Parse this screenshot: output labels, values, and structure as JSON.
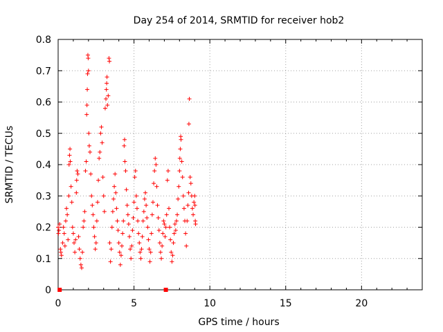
{
  "chart_data": {
    "type": "scatter",
    "title": "Day 254 of 2014, SRMTID for receiver hob2",
    "xlabel": "GPS time / hours",
    "ylabel": "SRMTID / TECUs",
    "xlim": [
      0,
      24
    ],
    "ylim": [
      0,
      0.8
    ],
    "xticks": [
      "0",
      "5",
      "10",
      "15",
      "20"
    ],
    "yticks": [
      "0",
      "0.1",
      "0.2",
      "0.3",
      "0.4",
      "0.5",
      "0.6",
      "0.7",
      "0.8"
    ],
    "grid": true,
    "marker": "+",
    "color": "#ff0000",
    "series": [
      {
        "name": "",
        "points": [
          [
            0.0,
            0.2
          ],
          [
            0.02,
            0.18
          ],
          [
            0.05,
            0.19
          ],
          [
            0.1,
            0.21
          ],
          [
            0.15,
            0.13
          ],
          [
            0.18,
            0.12
          ],
          [
            0.22,
            0.11
          ],
          [
            0.3,
            0.15
          ],
          [
            0.35,
            0.2
          ],
          [
            0.4,
            0.18
          ],
          [
            0.45,
            0.14
          ],
          [
            0.5,
            0.22
          ],
          [
            0.55,
            0.26
          ],
          [
            0.6,
            0.24
          ],
          [
            0.65,
            0.16
          ],
          [
            0.7,
            0.3
          ],
          [
            0.72,
            0.4
          ],
          [
            0.75,
            0.43
          ],
          [
            0.78,
            0.45
          ],
          [
            0.8,
            0.41
          ],
          [
            0.85,
            0.33
          ],
          [
            0.9,
            0.28
          ],
          [
            0.95,
            0.2
          ],
          [
            1.0,
            0.18
          ],
          [
            1.05,
            0.15
          ],
          [
            1.1,
            0.12
          ],
          [
            1.15,
            0.16
          ],
          [
            1.2,
            0.31
          ],
          [
            1.22,
            0.35
          ],
          [
            1.25,
            0.38
          ],
          [
            1.3,
            0.37
          ],
          [
            1.35,
            0.17
          ],
          [
            1.4,
            0.13
          ],
          [
            1.45,
            0.1
          ],
          [
            1.5,
            0.08
          ],
          [
            1.55,
            0.07
          ],
          [
            1.6,
            0.12
          ],
          [
            1.65,
            0.2
          ],
          [
            1.7,
            0.22
          ],
          [
            1.75,
            0.25
          ],
          [
            1.8,
            0.38
          ],
          [
            1.85,
            0.41
          ],
          [
            1.88,
            0.56
          ],
          [
            1.9,
            0.59
          ],
          [
            1.92,
            0.64
          ],
          [
            1.94,
            0.69
          ],
          [
            1.96,
            0.75
          ],
          [
            1.98,
            0.74
          ],
          [
            2.0,
            0.7
          ],
          [
            2.02,
            0.5
          ],
          [
            2.05,
            0.46
          ],
          [
            2.1,
            0.44
          ],
          [
            2.15,
            0.37
          ],
          [
            2.2,
            0.3
          ],
          [
            2.25,
            0.27
          ],
          [
            2.3,
            0.24
          ],
          [
            2.35,
            0.2
          ],
          [
            2.4,
            0.17
          ],
          [
            2.45,
            0.13
          ],
          [
            2.5,
            0.15
          ],
          [
            2.55,
            0.22
          ],
          [
            2.6,
            0.28
          ],
          [
            2.65,
            0.35
          ],
          [
            2.7,
            0.42
          ],
          [
            2.75,
            0.44
          ],
          [
            2.8,
            0.5
          ],
          [
            2.85,
            0.52
          ],
          [
            2.9,
            0.47
          ],
          [
            2.95,
            0.36
          ],
          [
            3.0,
            0.3
          ],
          [
            3.05,
            0.25
          ],
          [
            3.1,
            0.58
          ],
          [
            3.15,
            0.61
          ],
          [
            3.18,
            0.64
          ],
          [
            3.2,
            0.66
          ],
          [
            3.22,
            0.68
          ],
          [
            3.25,
            0.59
          ],
          [
            3.3,
            0.62
          ],
          [
            3.35,
            0.74
          ],
          [
            3.38,
            0.73
          ],
          [
            3.4,
            0.15
          ],
          [
            3.45,
            0.09
          ],
          [
            3.5,
            0.13
          ],
          [
            3.55,
            0.2
          ],
          [
            3.6,
            0.25
          ],
          [
            3.65,
            0.29
          ],
          [
            3.7,
            0.33
          ],
          [
            3.75,
            0.37
          ],
          [
            3.8,
            0.31
          ],
          [
            3.85,
            0.26
          ],
          [
            3.9,
            0.22
          ],
          [
            3.95,
            0.19
          ],
          [
            4.0,
            0.15
          ],
          [
            4.05,
            0.12
          ],
          [
            4.1,
            0.08
          ],
          [
            4.15,
            0.11
          ],
          [
            4.2,
            0.14
          ],
          [
            4.25,
            0.18
          ],
          [
            4.3,
            0.22
          ],
          [
            4.35,
            0.46
          ],
          [
            4.38,
            0.48
          ],
          [
            4.4,
            0.41
          ],
          [
            4.45,
            0.38
          ],
          [
            4.5,
            0.32
          ],
          [
            4.55,
            0.27
          ],
          [
            4.6,
            0.24
          ],
          [
            4.65,
            0.21
          ],
          [
            4.7,
            0.17
          ],
          [
            4.75,
            0.13
          ],
          [
            4.8,
            0.1
          ],
          [
            4.85,
            0.14
          ],
          [
            4.9,
            0.19
          ],
          [
            4.95,
            0.23
          ],
          [
            5.0,
            0.28
          ],
          [
            5.05,
            0.36
          ],
          [
            5.1,
            0.38
          ],
          [
            5.15,
            0.3
          ],
          [
            5.2,
            0.26
          ],
          [
            5.25,
            0.22
          ],
          [
            5.3,
            0.18
          ],
          [
            5.35,
            0.15
          ],
          [
            5.4,
            0.12
          ],
          [
            5.45,
            0.1
          ],
          [
            5.5,
            0.13
          ],
          [
            5.55,
            0.17
          ],
          [
            5.6,
            0.22
          ],
          [
            5.65,
            0.25
          ],
          [
            5.7,
            0.29
          ],
          [
            5.75,
            0.31
          ],
          [
            5.8,
            0.27
          ],
          [
            5.85,
            0.23
          ],
          [
            5.9,
            0.2
          ],
          [
            5.95,
            0.16
          ],
          [
            6.0,
            0.13
          ],
          [
            6.05,
            0.09
          ],
          [
            6.1,
            0.12
          ],
          [
            6.15,
            0.18
          ],
          [
            6.2,
            0.24
          ],
          [
            6.25,
            0.28
          ],
          [
            6.3,
            0.34
          ],
          [
            6.35,
            0.38
          ],
          [
            6.4,
            0.42
          ],
          [
            6.45,
            0.4
          ],
          [
            6.5,
            0.33
          ],
          [
            6.55,
            0.27
          ],
          [
            6.6,
            0.23
          ],
          [
            6.65,
            0.19
          ],
          [
            6.7,
            0.15
          ],
          [
            6.75,
            0.12
          ],
          [
            6.8,
            0.1
          ],
          [
            6.85,
            0.14
          ],
          [
            6.9,
            0.18
          ],
          [
            6.95,
            0.22
          ],
          [
            7.0,
            0.21
          ],
          [
            7.05,
            0.17
          ],
          [
            7.1,
            0.2
          ],
          [
            7.15,
            0.24
          ],
          [
            7.2,
            0.35
          ],
          [
            7.25,
            0.38
          ],
          [
            7.3,
            0.26
          ],
          [
            7.35,
            0.2
          ],
          [
            7.4,
            0.16
          ],
          [
            7.45,
            0.12
          ],
          [
            7.5,
            0.09
          ],
          [
            7.55,
            0.11
          ],
          [
            7.6,
            0.15
          ],
          [
            7.65,
            0.18
          ],
          [
            7.7,
            0.21
          ],
          [
            7.75,
            0.19
          ],
          [
            7.8,
            0.22
          ],
          [
            7.85,
            0.24
          ],
          [
            7.9,
            0.29
          ],
          [
            7.95,
            0.33
          ],
          [
            8.0,
            0.38
          ],
          [
            8.02,
            0.42
          ],
          [
            8.05,
            0.45
          ],
          [
            8.08,
            0.49
          ],
          [
            8.1,
            0.48
          ],
          [
            8.15,
            0.41
          ],
          [
            8.2,
            0.36
          ],
          [
            8.25,
            0.3
          ],
          [
            8.3,
            0.26
          ],
          [
            8.35,
            0.22
          ],
          [
            8.4,
            0.18
          ],
          [
            8.45,
            0.14
          ],
          [
            8.5,
            0.22
          ],
          [
            8.55,
            0.27
          ],
          [
            8.6,
            0.31
          ],
          [
            8.62,
            0.53
          ],
          [
            8.65,
            0.61
          ],
          [
            8.7,
            0.36
          ],
          [
            8.75,
            0.34
          ],
          [
            8.8,
            0.3
          ],
          [
            8.85,
            0.26
          ],
          [
            8.9,
            0.24
          ],
          [
            8.95,
            0.28
          ],
          [
            9.0,
            0.3
          ],
          [
            9.02,
            0.27
          ],
          [
            9.04,
            0.22
          ],
          [
            9.06,
            0.21
          ]
        ]
      }
    ],
    "zero_markers": [
      0.1,
      7.1
    ]
  }
}
